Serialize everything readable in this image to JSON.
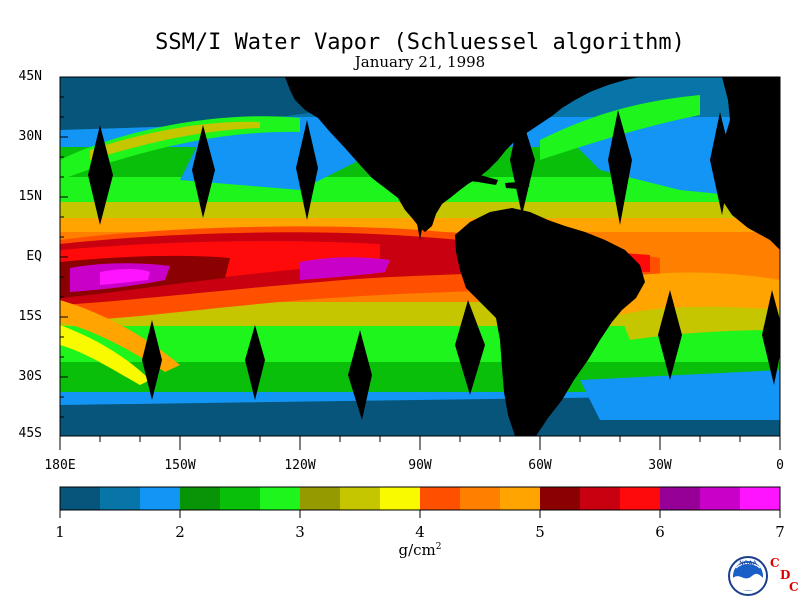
{
  "title": "SSM/I Water Vapor (Schluessel algorithm)",
  "date": "January 21, 1998",
  "lat_labels": [
    "45N",
    "30N",
    "15N",
    "EQ",
    "15S",
    "30S",
    "45S"
  ],
  "lon_labels": [
    "180E",
    "150W",
    "120W",
    "90W",
    "60W",
    "30W",
    "0"
  ],
  "colorbar": {
    "ticks": [
      "1",
      "2",
      "3",
      "4",
      "5",
      "6",
      "7"
    ],
    "units": "g/cm",
    "units_sup": "2",
    "colors": [
      "#07557a",
      "#0875a8",
      "#1295f5",
      "#079407",
      "#09bf09",
      "#1df51d",
      "#959a00",
      "#c5c500",
      "#f9f900",
      "#ff5000",
      "#ff7f00",
      "#ffa400",
      "#8b0000",
      "#c80010",
      "#ff0a0a",
      "#960096",
      "#c800c8",
      "#ff14ff"
    ]
  },
  "logo": {
    "agency": "NOAA",
    "letters": [
      "C",
      "D",
      "C"
    ]
  },
  "colors": {
    "land": "#000000",
    "axis": "#000000",
    "background": "#ffffff"
  }
}
